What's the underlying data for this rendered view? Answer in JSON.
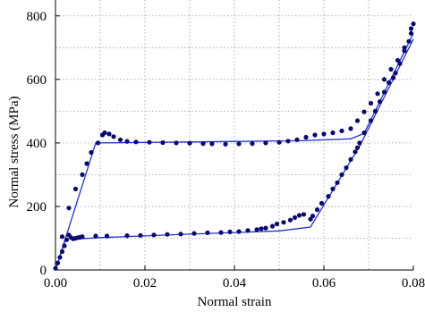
{
  "chart_data": {
    "type": "scatter",
    "title": "",
    "xlabel": "Normal strain",
    "ylabel": "Normal stress (MPa)",
    "xlim": [
      0,
      0.08
    ],
    "ylim": [
      0,
      850
    ],
    "xticks": [
      0,
      0.02,
      0.04,
      0.06,
      0.08
    ],
    "xtick_labels": [
      "0.00",
      "0.02",
      "0.04",
      "0.06",
      "0.08"
    ],
    "yticks": [
      0,
      200,
      400,
      600,
      800
    ],
    "ytick_labels": [
      "0",
      "200",
      "400",
      "600",
      "800"
    ],
    "grid": true,
    "legend": "none",
    "colors": {
      "line": "#2233cc",
      "points": "#0a0a6e"
    },
    "series": [
      {
        "type": "line",
        "points": [
          [
            0,
            0
          ],
          [
            0.0025,
            110
          ],
          [
            0.005,
            98
          ],
          [
            0.01,
            102
          ],
          [
            0.03,
            113
          ],
          [
            0.05,
            123
          ],
          [
            0.057,
            135
          ],
          [
            0.068,
            390
          ],
          [
            0.08,
            727
          ]
        ]
      },
      {
        "type": "line",
        "points": [
          [
            0,
            0
          ],
          [
            0.009,
            400
          ],
          [
            0.03,
            403
          ],
          [
            0.055,
            407
          ],
          [
            0.066,
            413
          ],
          [
            0.069,
            430
          ],
          [
            0.08,
            745
          ]
        ]
      },
      {
        "type": "scatter",
        "points": [
          [
            0.0,
            5
          ],
          [
            0.0005,
            22
          ],
          [
            0.001,
            40
          ],
          [
            0.0015,
            58
          ],
          [
            0.002,
            76
          ],
          [
            0.0025,
            95
          ],
          [
            0.003,
            110
          ],
          [
            0.0035,
            102
          ],
          [
            0.004,
            98
          ],
          [
            0.0045,
            100
          ],
          [
            0.005,
            102
          ],
          [
            0.0055,
            103
          ],
          [
            0.006,
            105
          ],
          [
            0.009,
            107
          ],
          [
            0.0115,
            107
          ],
          [
            0.016,
            108
          ],
          [
            0.019,
            109
          ],
          [
            0.022,
            110
          ],
          [
            0.025,
            112
          ],
          [
            0.028,
            113
          ],
          [
            0.031,
            115
          ],
          [
            0.034,
            117
          ],
          [
            0.037,
            118
          ],
          [
            0.039,
            120
          ],
          [
            0.041,
            121
          ],
          [
            0.043,
            124
          ],
          [
            0.045,
            127
          ],
          [
            0.046,
            130
          ],
          [
            0.047,
            132
          ],
          [
            0.0485,
            138
          ],
          [
            0.0495,
            145
          ],
          [
            0.051,
            150
          ],
          [
            0.0525,
            157
          ],
          [
            0.0535,
            165
          ],
          [
            0.0545,
            172
          ],
          [
            0.0555,
            175
          ],
          [
            0.057,
            160
          ],
          [
            0.0575,
            170
          ],
          [
            0.0585,
            190
          ],
          [
            0.0595,
            210
          ],
          [
            0.061,
            232
          ],
          [
            0.062,
            255
          ],
          [
            0.063,
            275
          ],
          [
            0.064,
            300
          ],
          [
            0.065,
            322
          ],
          [
            0.066,
            348
          ],
          [
            0.067,
            372
          ],
          [
            0.0675,
            385
          ],
          [
            0.068,
            400
          ],
          [
            0.069,
            432
          ],
          [
            0.0705,
            470
          ],
          [
            0.0715,
            500
          ],
          [
            0.0725,
            530
          ],
          [
            0.0735,
            560
          ],
          [
            0.0745,
            590
          ],
          [
            0.0755,
            605
          ],
          [
            0.076,
            620
          ],
          [
            0.077,
            650
          ],
          [
            0.078,
            690
          ],
          [
            0.079,
            720
          ],
          [
            0.0795,
            745
          ],
          [
            0.08,
            775
          ],
          [
            0.0015,
            105
          ],
          [
            0.003,
            195
          ],
          [
            0.0045,
            255
          ],
          [
            0.006,
            300
          ],
          [
            0.007,
            335
          ],
          [
            0.008,
            370
          ],
          [
            0.0095,
            400
          ],
          [
            0.0105,
            425
          ],
          [
            0.011,
            432
          ],
          [
            0.012,
            428
          ],
          [
            0.013,
            420
          ],
          [
            0.0145,
            410
          ],
          [
            0.016,
            405
          ],
          [
            0.018,
            403
          ],
          [
            0.021,
            402
          ],
          [
            0.024,
            401
          ],
          [
            0.027,
            400
          ],
          [
            0.03,
            399
          ],
          [
            0.033,
            398
          ],
          [
            0.035,
            397
          ],
          [
            0.038,
            396
          ],
          [
            0.041,
            397
          ],
          [
            0.044,
            398
          ],
          [
            0.047,
            400
          ],
          [
            0.05,
            402
          ],
          [
            0.052,
            406
          ],
          [
            0.054,
            410
          ],
          [
            0.056,
            418
          ],
          [
            0.058,
            425
          ],
          [
            0.06,
            428
          ],
          [
            0.062,
            432
          ],
          [
            0.064,
            438
          ],
          [
            0.066,
            445
          ],
          [
            0.0675,
            470
          ],
          [
            0.069,
            498
          ],
          [
            0.0705,
            525
          ],
          [
            0.072,
            555
          ],
          [
            0.0735,
            600
          ],
          [
            0.075,
            632
          ],
          [
            0.0765,
            660
          ],
          [
            0.078,
            700
          ],
          [
            0.0795,
            760
          ]
        ]
      }
    ]
  }
}
